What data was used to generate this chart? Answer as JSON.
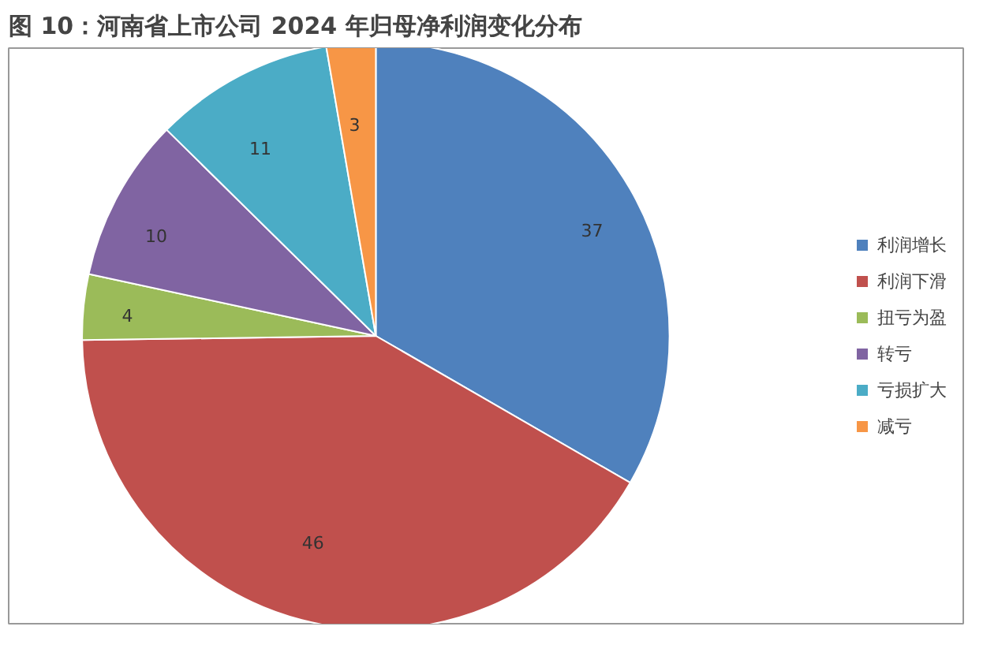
{
  "chart_data": {
    "type": "pie",
    "title": "图 10：河南省上市公司 2024 年归母净利润变化分布",
    "categories": [
      "利润增长",
      "利润下滑",
      "扭亏为盈",
      "转亏",
      "亏损扩大",
      "减亏"
    ],
    "values": [
      37,
      46,
      4,
      10,
      11,
      3
    ],
    "colors": [
      "#4f81bd",
      "#c0504d",
      "#9bbb59",
      "#8064a2",
      "#4bacc6",
      "#f79646"
    ],
    "data_labels": true,
    "legend": "right"
  }
}
